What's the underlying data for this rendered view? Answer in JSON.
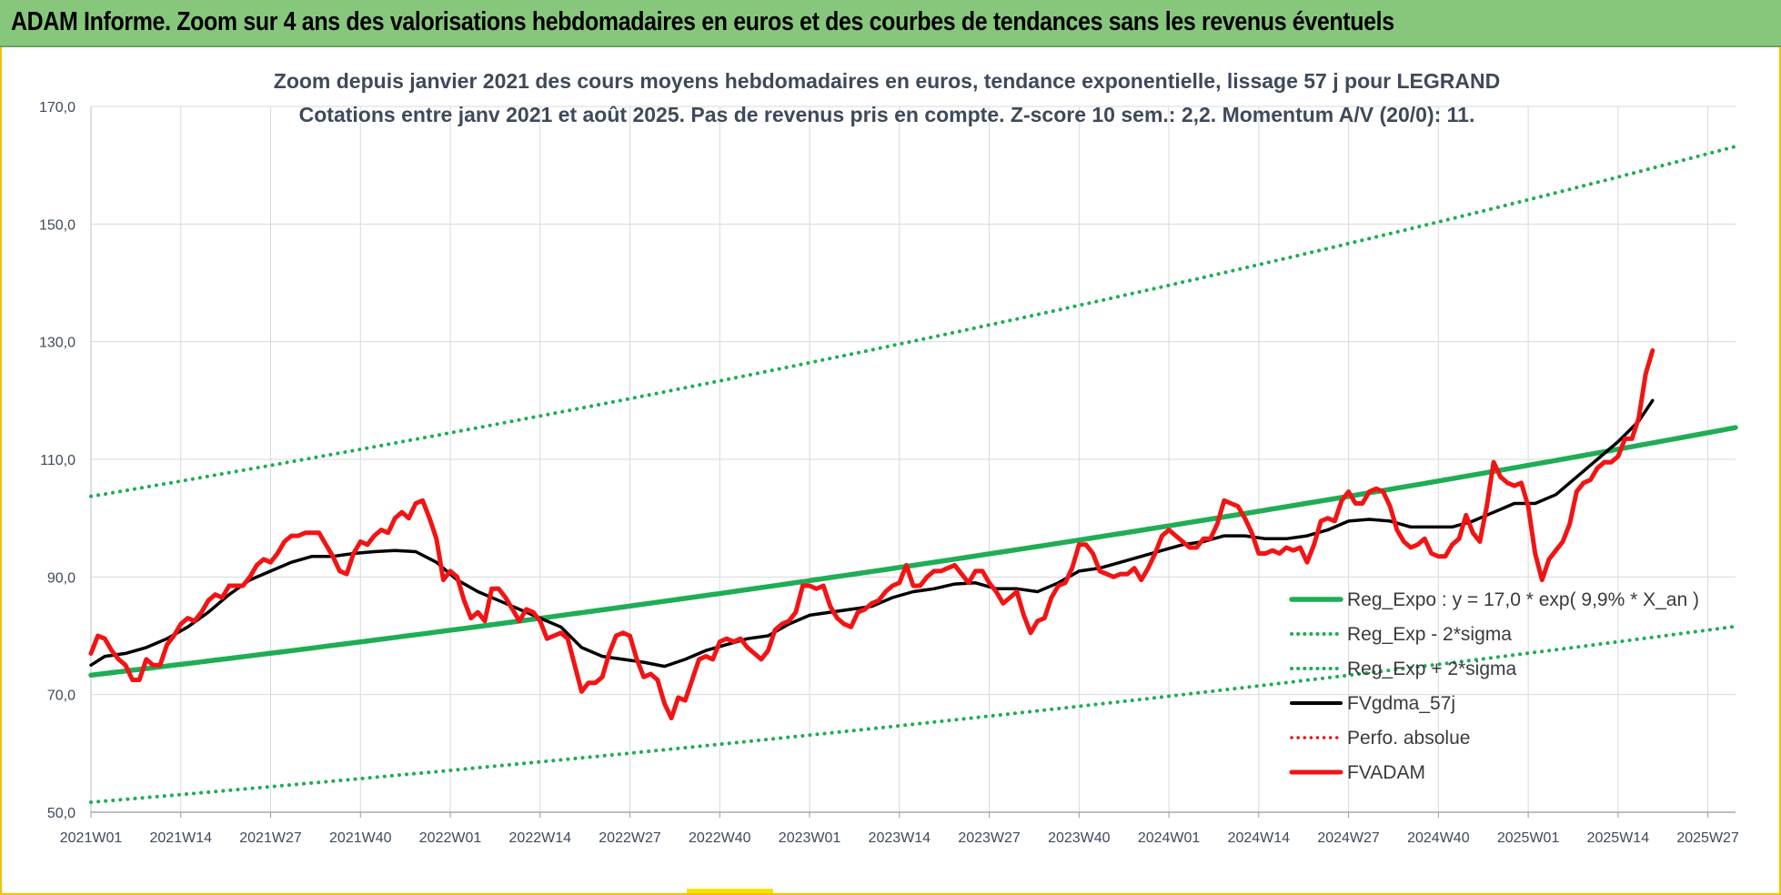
{
  "header": {
    "banner_title": "ADAM Informe. Zoom sur 4 ans des valorisations hebdomadaires en euros et des courbes de tendances sans les revenus éventuels"
  },
  "chart_data": {
    "type": "line",
    "title_lines": [
      "Zoom depuis janvier 2021 des cours moyens hebdomadaires en euros, tendance exponentielle, lissage 57 j pour LEGRAND",
      "Cotations entre janv 2021 et août 2025.  Pas de revenus pris en compte. Z-score 10 sem.: 2,2. Momentum A/V (20/0): 11."
    ],
    "ylim": [
      50,
      170
    ],
    "yticks": [
      50,
      70,
      90,
      110,
      130,
      150,
      170
    ],
    "ytick_labels": [
      "50,0",
      "70,0",
      "90,0",
      "110,0",
      "130,0",
      "150,0",
      "170,0"
    ],
    "x_ticks": [
      "2021W01",
      "2021W14",
      "2021W27",
      "2021W40",
      "2022W01",
      "2022W14",
      "2022W27",
      "2022W40",
      "2023W01",
      "2023W14",
      "2023W27",
      "2023W40",
      "2024W01",
      "2024W14",
      "2024W27",
      "2024W40",
      "2025W01",
      "2025W14",
      "2025W27"
    ],
    "x_tick_positions": [
      0,
      13,
      26,
      39,
      52,
      65,
      78,
      91,
      104,
      117,
      130,
      143,
      156,
      169,
      182,
      195,
      208,
      221,
      234
    ],
    "x_max": 238,
    "grid": true,
    "legend_position": "bottom-right",
    "colors": {
      "reg_expo": "#1fad55",
      "bands": "#1fad55",
      "fvgdma": "#000000",
      "perfo": "#e01818",
      "fvadam": "#f21414"
    },
    "trend": {
      "formula": "y = 17,0 * exp( 9,9% *  X_an )",
      "start_value": 73.3,
      "end_value": 115.4,
      "lower_start": 51.7,
      "lower_end": 81.6,
      "upper_start": 103.7,
      "upper_end": 163.2
    },
    "series": [
      {
        "name": "FVADAM",
        "points": [
          [
            0,
            77
          ],
          [
            2,
            80
          ],
          [
            4,
            79.5
          ],
          [
            6,
            77.5
          ],
          [
            8,
            76
          ],
          [
            10,
            75
          ],
          [
            12,
            72.5
          ],
          [
            14,
            72.5
          ],
          [
            16,
            76
          ],
          [
            18,
            75
          ],
          [
            20,
            75
          ],
          [
            22,
            78.5
          ],
          [
            24,
            80
          ],
          [
            26,
            82
          ],
          [
            28,
            83
          ],
          [
            30,
            82.5
          ],
          [
            32,
            84
          ],
          [
            34,
            86
          ],
          [
            36,
            87
          ],
          [
            38,
            86.5
          ],
          [
            40,
            88.5
          ],
          [
            42,
            88.5
          ],
          [
            44,
            88.5
          ],
          [
            46,
            90
          ],
          [
            48,
            92
          ],
          [
            50,
            93
          ],
          [
            52,
            92.5
          ],
          [
            54,
            94
          ],
          [
            56,
            96
          ],
          [
            58,
            97
          ],
          [
            60,
            97
          ],
          [
            62,
            97.5
          ],
          [
            64,
            97.5
          ],
          [
            66,
            97.5
          ],
          [
            68,
            95.5
          ],
          [
            70,
            93.5
          ],
          [
            72,
            91
          ],
          [
            74,
            90.5
          ],
          [
            76,
            94
          ],
          [
            78,
            96
          ],
          [
            80,
            95.5
          ],
          [
            82,
            97
          ],
          [
            84,
            98
          ],
          [
            86,
            97.5
          ],
          [
            88,
            100
          ],
          [
            90,
            101
          ],
          [
            92,
            100
          ],
          [
            94,
            102.5
          ],
          [
            96,
            103
          ],
          [
            98,
            100
          ],
          [
            100,
            96.5
          ],
          [
            102,
            89.5
          ],
          [
            104,
            91
          ],
          [
            106,
            90
          ],
          [
            108,
            86
          ],
          [
            110,
            83
          ],
          [
            112,
            84
          ],
          [
            114,
            82.5
          ],
          [
            116,
            88
          ],
          [
            118,
            88
          ],
          [
            120,
            86.5
          ],
          [
            122,
            84.5
          ],
          [
            124,
            82.5
          ],
          [
            126,
            84.5
          ],
          [
            128,
            84
          ],
          [
            130,
            82.5
          ],
          [
            132,
            79.5
          ],
          [
            134,
            80
          ],
          [
            136,
            80.5
          ],
          [
            138,
            79.5
          ],
          [
            140,
            75
          ],
          [
            142,
            70.5
          ],
          [
            144,
            72
          ],
          [
            146,
            72
          ],
          [
            148,
            73
          ],
          [
            150,
            77
          ],
          [
            152,
            80
          ],
          [
            154,
            80.5
          ],
          [
            156,
            80
          ],
          [
            158,
            76
          ],
          [
            160,
            73
          ],
          [
            162,
            73.5
          ],
          [
            164,
            72.5
          ],
          [
            166,
            68.5
          ],
          [
            168,
            66
          ],
          [
            170,
            69.5
          ],
          [
            172,
            69
          ],
          [
            174,
            72.5
          ],
          [
            176,
            76
          ],
          [
            178,
            76.5
          ],
          [
            180,
            76
          ],
          [
            182,
            79
          ],
          [
            184,
            79.5
          ],
          [
            186,
            79
          ],
          [
            188,
            79.5
          ],
          [
            190,
            78
          ],
          [
            192,
            77
          ],
          [
            194,
            76
          ],
          [
            196,
            77.5
          ],
          [
            198,
            81
          ],
          [
            200,
            82
          ],
          [
            202,
            82.5
          ],
          [
            204,
            84
          ],
          [
            206,
            88.5
          ],
          [
            208,
            88.5
          ],
          [
            210,
            88
          ],
          [
            212,
            88.5
          ],
          [
            214,
            85
          ],
          [
            216,
            83
          ],
          [
            218,
            82
          ],
          [
            220,
            81.5
          ],
          [
            222,
            84
          ],
          [
            224,
            84.5
          ],
          [
            226,
            85.5
          ],
          [
            228,
            86
          ],
          [
            230,
            87.5
          ],
          [
            232,
            88.5
          ],
          [
            234,
            89
          ],
          [
            236,
            92
          ],
          [
            238,
            88.5
          ],
          [
            240,
            88.5
          ],
          [
            242,
            90
          ],
          [
            244,
            91
          ],
          [
            246,
            91
          ],
          [
            248,
            91.5
          ],
          [
            250,
            92
          ],
          [
            252,
            90.5
          ],
          [
            254,
            89
          ],
          [
            256,
            91
          ],
          [
            258,
            91
          ],
          [
            260,
            89
          ],
          [
            262,
            87.5
          ],
          [
            264,
            85.5
          ],
          [
            266,
            86.5
          ],
          [
            268,
            87.5
          ],
          [
            270,
            83.5
          ],
          [
            272,
            80.5
          ],
          [
            274,
            82.5
          ],
          [
            276,
            83
          ],
          [
            278,
            86.5
          ],
          [
            280,
            88.5
          ],
          [
            282,
            89
          ],
          [
            284,
            91.5
          ],
          [
            286,
            95.5
          ],
          [
            288,
            95.5
          ],
          [
            290,
            94
          ],
          [
            292,
            91
          ],
          [
            294,
            90.5
          ],
          [
            296,
            90
          ],
          [
            298,
            90.5
          ],
          [
            300,
            90.5
          ],
          [
            302,
            91.5
          ],
          [
            304,
            89.5
          ],
          [
            306,
            91.5
          ],
          [
            308,
            94
          ],
          [
            310,
            97
          ],
          [
            312,
            98
          ],
          [
            314,
            97
          ],
          [
            316,
            96
          ],
          [
            318,
            95
          ],
          [
            320,
            95
          ],
          [
            322,
            96.5
          ],
          [
            324,
            96.5
          ],
          [
            326,
            99
          ],
          [
            328,
            103
          ],
          [
            330,
            102.5
          ],
          [
            332,
            102
          ],
          [
            334,
            100
          ],
          [
            336,
            97.5
          ],
          [
            338,
            94
          ],
          [
            340,
            94
          ],
          [
            342,
            94.5
          ],
          [
            344,
            94
          ],
          [
            346,
            95
          ],
          [
            348,
            94.5
          ],
          [
            350,
            95
          ],
          [
            352,
            92.5
          ],
          [
            354,
            95.5
          ],
          [
            356,
            99.5
          ],
          [
            358,
            100
          ],
          [
            360,
            99.5
          ],
          [
            362,
            103
          ],
          [
            364,
            104.5
          ],
          [
            366,
            102.5
          ],
          [
            368,
            102.5
          ],
          [
            370,
            104.5
          ],
          [
            372,
            105
          ],
          [
            374,
            104.5
          ],
          [
            376,
            102
          ],
          [
            378,
            98
          ],
          [
            380,
            96
          ],
          [
            382,
            95
          ],
          [
            384,
            95.5
          ],
          [
            386,
            96.5
          ],
          [
            388,
            94
          ],
          [
            390,
            93.5
          ],
          [
            392,
            93.5
          ],
          [
            394,
            95.5
          ],
          [
            396,
            96.5
          ],
          [
            398,
            100.5
          ],
          [
            400,
            97.5
          ],
          [
            402,
            96
          ],
          [
            404,
            102
          ],
          [
            406,
            109.5
          ],
          [
            408,
            107
          ],
          [
            410,
            106
          ],
          [
            412,
            105.5
          ],
          [
            414,
            106
          ],
          [
            416,
            102
          ],
          [
            418,
            94
          ],
          [
            420,
            89.5
          ],
          [
            422,
            93
          ],
          [
            424,
            94.5
          ],
          [
            426,
            96
          ],
          [
            428,
            99
          ],
          [
            430,
            104.5
          ],
          [
            432,
            106
          ],
          [
            434,
            106.5
          ],
          [
            436,
            108.5
          ],
          [
            438,
            109.5
          ],
          [
            440,
            109.5
          ],
          [
            442,
            110.5
          ],
          [
            444,
            113.5
          ],
          [
            446,
            113.5
          ],
          [
            448,
            117
          ],
          [
            450,
            124.5
          ],
          [
            452,
            128.5
          ]
        ]
      },
      {
        "name": "FVgdma_57j",
        "points": [
          [
            0,
            75
          ],
          [
            4,
            76.5
          ],
          [
            10,
            77
          ],
          [
            16,
            78
          ],
          [
            22,
            79.5
          ],
          [
            28,
            81.5
          ],
          [
            34,
            84
          ],
          [
            40,
            87
          ],
          [
            46,
            89.5
          ],
          [
            52,
            91
          ],
          [
            58,
            92.5
          ],
          [
            64,
            93.5
          ],
          [
            70,
            93.5
          ],
          [
            76,
            94
          ],
          [
            82,
            94.3
          ],
          [
            88,
            94.5
          ],
          [
            94,
            94.3
          ],
          [
            100,
            92.5
          ],
          [
            106,
            89.5
          ],
          [
            112,
            87.5
          ],
          [
            118,
            86
          ],
          [
            124,
            84.5
          ],
          [
            130,
            83
          ],
          [
            136,
            81.5
          ],
          [
            142,
            78
          ],
          [
            148,
            76.5
          ],
          [
            154,
            76
          ],
          [
            160,
            75.5
          ],
          [
            166,
            74.8
          ],
          [
            172,
            76
          ],
          [
            178,
            77.5
          ],
          [
            184,
            78.5
          ],
          [
            190,
            79.5
          ],
          [
            196,
            80
          ],
          [
            202,
            82
          ],
          [
            208,
            83.5
          ],
          [
            214,
            84
          ],
          [
            220,
            84.5
          ],
          [
            226,
            85
          ],
          [
            232,
            86.5
          ],
          [
            238,
            87.5
          ],
          [
            244,
            88
          ],
          [
            250,
            88.8
          ],
          [
            256,
            89
          ],
          [
            262,
            88
          ],
          [
            268,
            88
          ],
          [
            274,
            87.5
          ],
          [
            280,
            89
          ],
          [
            286,
            91
          ],
          [
            292,
            91.5
          ],
          [
            298,
            92.5
          ],
          [
            304,
            93.5
          ],
          [
            310,
            94.5
          ],
          [
            316,
            95.5
          ],
          [
            322,
            96
          ],
          [
            328,
            97
          ],
          [
            334,
            97
          ],
          [
            340,
            96.5
          ],
          [
            346,
            96.5
          ],
          [
            352,
            97
          ],
          [
            358,
            98
          ],
          [
            364,
            99.5
          ],
          [
            370,
            99.8
          ],
          [
            376,
            99.5
          ],
          [
            382,
            98.5
          ],
          [
            388,
            98.5
          ],
          [
            394,
            98.5
          ],
          [
            400,
            99.5
          ],
          [
            406,
            101
          ],
          [
            412,
            102.5
          ],
          [
            418,
            102.5
          ],
          [
            424,
            104
          ],
          [
            430,
            107
          ],
          [
            436,
            110
          ],
          [
            442,
            113
          ],
          [
            448,
            116.5
          ],
          [
            452,
            120
          ]
        ]
      },
      {
        "name": "Reg_Expo : y = 17,0 * exp( 9,9% *  X_an )"
      },
      {
        "name": "Reg_Exp - 2*sigma"
      },
      {
        "name": "Reg_Exp + 2*sigma"
      },
      {
        "name": "Perfo. absolue"
      }
    ]
  }
}
